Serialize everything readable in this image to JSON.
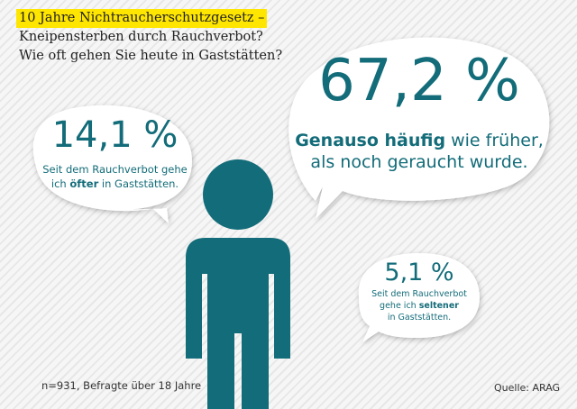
{
  "title": {
    "line1": "10 Jahre Nichtraucherschutzgesetz –",
    "line2": "Kneipensterben durch Rauchverbot?",
    "line3": "Wie oft gehen Sie heute in Gaststätten?"
  },
  "colors": {
    "accent": "#136c79",
    "highlight": "#ffe600",
    "bubble": "#ffffff"
  },
  "chart_data": {
    "type": "pie",
    "categories": [
      "Genauso häufig wie früher",
      "öfter",
      "seltener"
    ],
    "values": [
      67.2,
      14.1,
      5.1
    ],
    "unit": "%",
    "labels": {
      "same": {
        "value": "67,2 %",
        "emph": "Genauso häufig",
        "rest": " wie früher,",
        "line2": "als noch geraucht wurde."
      },
      "more": {
        "value": "14,1 %",
        "line1": "Seit dem Rauchverbot gehe",
        "pre": "ich ",
        "emph": "öfter",
        "post": " in Gaststätten."
      },
      "less": {
        "value": "5,1 %",
        "line1": "Seit dem Rauchverbot",
        "pre": "gehe ich ",
        "emph": "seltener",
        "line3": "in Gaststätten."
      }
    }
  },
  "figure": {
    "icon": "person-icon"
  },
  "footer": {
    "sample": "n=931, Befragte über 18 Jahre",
    "source": "Quelle: ARAG"
  }
}
